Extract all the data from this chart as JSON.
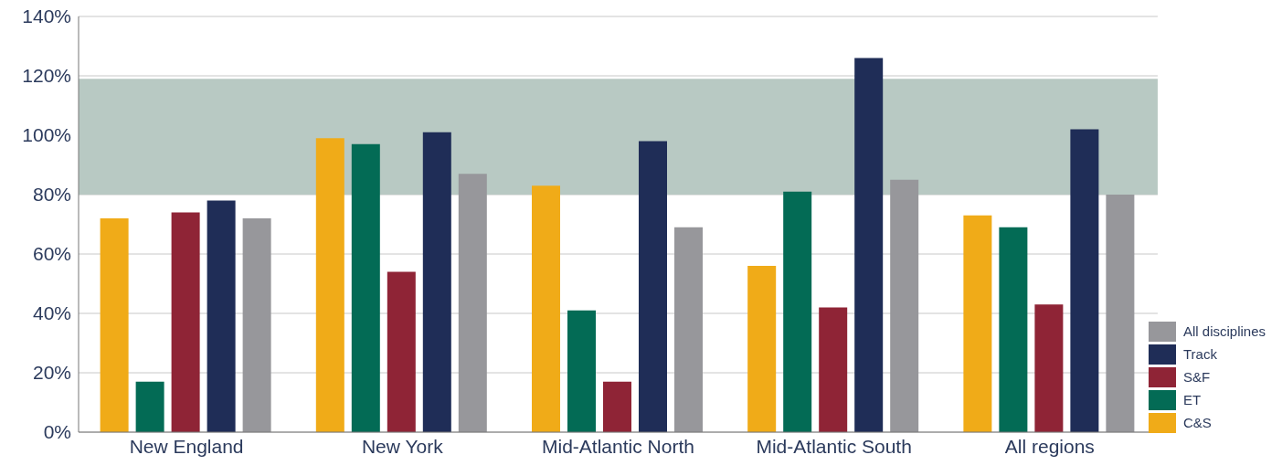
{
  "chart_data": {
    "type": "bar",
    "categories": [
      "New England",
      "New York",
      "Mid-Atlantic North",
      "Mid-Atlantic South",
      "All regions"
    ],
    "series": [
      {
        "name": "C&S",
        "color": "#f0ab18",
        "values": [
          72,
          99,
          83,
          56,
          73
        ]
      },
      {
        "name": "ET",
        "color": "#036b55",
        "values": [
          17,
          97,
          41,
          81,
          69
        ]
      },
      {
        "name": "S&F",
        "color": "#8f2436",
        "values": [
          74,
          54,
          17,
          42,
          43
        ]
      },
      {
        "name": "Track",
        "color": "#1f2d57",
        "values": [
          78,
          101,
          98,
          126,
          102
        ]
      },
      {
        "name": "All disciplines",
        "color": "#97979b",
        "values": [
          72,
          87,
          69,
          85,
          80
        ]
      }
    ],
    "ylim": [
      0,
      140
    ],
    "yticks": [
      {
        "value": 0,
        "label": "0%"
      },
      {
        "value": 20,
        "label": "20%"
      },
      {
        "value": 40,
        "label": "40%"
      },
      {
        "value": 60,
        "label": "60%"
      },
      {
        "value": 80,
        "label": "80%"
      },
      {
        "value": 100,
        "label": "100%"
      },
      {
        "value": 120,
        "label": "120%"
      },
      {
        "value": 140,
        "label": "140%"
      }
    ],
    "grid": "y",
    "bands": [
      {
        "axis": "y",
        "from": 80,
        "to": 119,
        "color": "#b8c9c3"
      }
    ],
    "legend": "bottom right"
  }
}
